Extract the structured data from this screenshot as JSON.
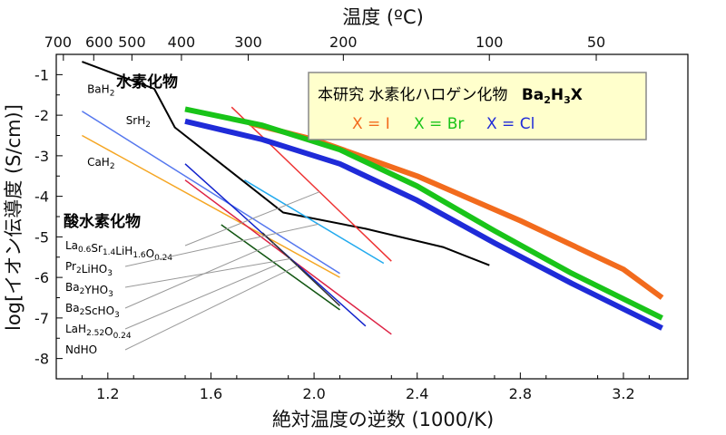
{
  "chart_data": {
    "type": "line",
    "xlabel": "絶対温度の逆数 (1000/K)",
    "ylabel": "log[イオン伝導度 (S/cm)]",
    "top_axis_label": "温度 (ºC)",
    "xlim": [
      1.0,
      3.45
    ],
    "ylim": [
      -8.5,
      -0.5
    ],
    "x_ticks": [
      1.2,
      1.6,
      2.0,
      2.4,
      2.8,
      3.2
    ],
    "x_tick_labels": [
      "1.2",
      "1.6",
      "2.0",
      "2.4",
      "2.8",
      "3.2"
    ],
    "y_ticks": [
      -1,
      -2,
      -3,
      -4,
      -5,
      -6,
      -7,
      -8
    ],
    "y_tick_labels": [
      "-1",
      "-2",
      "-3",
      "-4",
      "-5",
      "-6",
      "-7",
      "-8"
    ],
    "top_ticks": [
      700,
      600,
      500,
      400,
      300,
      200,
      100,
      50
    ],
    "top_tick_labels": [
      "700",
      "600",
      "500",
      "400",
      "300",
      "200",
      "100",
      "50"
    ],
    "grid": false,
    "legend": {
      "title_prefix": "本研究 水素化ハロゲン化物",
      "formula": "Ba₂H₃X",
      "items": [
        {
          "label": "X = I",
          "color": "#f26b1d"
        },
        {
          "label": "X = Br",
          "color": "#19c419"
        },
        {
          "label": "X = Cl",
          "color": "#1f2bd8"
        }
      ],
      "placement": "top-right",
      "background": "#ffffcc"
    },
    "group_labels": {
      "hydrides": "水素化物",
      "oxyhydrides": "酸水素化物"
    },
    "series": [
      {
        "name": "X = I",
        "color": "#f26b1d",
        "width": 6,
        "x": [
          1.75,
          2.0,
          2.4,
          2.8,
          3.2,
          3.35
        ],
        "y": [
          -2.2,
          -2.6,
          -3.5,
          -4.6,
          -5.8,
          -6.5
        ]
      },
      {
        "name": "X = Br",
        "color": "#19c419",
        "width": 6,
        "x": [
          1.5,
          1.8,
          2.1,
          2.4,
          2.7,
          3.0,
          3.35
        ],
        "y": [
          -1.85,
          -2.25,
          -2.85,
          -3.75,
          -4.85,
          -5.9,
          -7.0
        ]
      },
      {
        "name": "X = Cl",
        "color": "#1f2bd8",
        "width": 6,
        "x": [
          1.5,
          1.8,
          2.1,
          2.4,
          2.7,
          3.0,
          3.35
        ],
        "y": [
          -2.15,
          -2.6,
          -3.2,
          -4.1,
          -5.15,
          -6.15,
          -7.25
        ]
      },
      {
        "name": "BaH₂",
        "color": "#000000",
        "width": 2,
        "x": [
          1.1,
          1.38,
          1.46,
          1.68,
          1.88,
          2.2,
          2.5,
          2.68
        ],
        "y": [
          -0.68,
          -1.35,
          -2.3,
          -3.4,
          -4.4,
          -4.8,
          -5.25,
          -5.7
        ]
      },
      {
        "name": "SrH₂",
        "color": "#5577ee",
        "width": 1.5,
        "x": [
          1.1,
          2.1
        ],
        "y": [
          -1.9,
          -5.9
        ]
      },
      {
        "name": "CaH₂",
        "color": "#f5a623",
        "width": 1.5,
        "x": [
          1.1,
          2.1
        ],
        "y": [
          -2.5,
          -6.0
        ]
      },
      {
        "name": "La₀.₆Sr₁.₄LiH₁.₆O₀.₂₄",
        "color": "#ee3333",
        "width": 1.5,
        "x": [
          1.68,
          2.3
        ],
        "y": [
          -1.8,
          -5.6
        ]
      },
      {
        "name": "Pr₂LiHO₃",
        "color": "#22aaee",
        "width": 1.5,
        "x": [
          1.73,
          2.27
        ],
        "y": [
          -3.6,
          -5.65
        ]
      },
      {
        "name": "Ba₂YHO₃",
        "color": "#dd2244",
        "width": 1.5,
        "x": [
          1.5,
          2.3
        ],
        "y": [
          -3.6,
          -7.4
        ]
      },
      {
        "name": "Ba₂ScHO₃",
        "color": "#1122cc",
        "width": 1.5,
        "x": [
          1.5,
          2.2
        ],
        "y": [
          -3.2,
          -7.2
        ]
      },
      {
        "name": "LaH₂.₅₂O₀.₂₄",
        "color": "#115511",
        "width": 1.5,
        "x": [
          1.64,
          2.1
        ],
        "y": [
          -4.7,
          -6.8
        ]
      },
      {
        "name": "NdHO",
        "color": "#333333",
        "width": 1.5,
        "x": [
          1.8,
          2.1
        ],
        "y": [
          -4.9,
          -6.7
        ]
      }
    ],
    "annotations": [
      {
        "text": "BaH₂",
        "x": 1.12,
        "y": -1.45
      },
      {
        "text": "SrH₂",
        "x": 1.27,
        "y": -2.22
      },
      {
        "text": "CaH₂",
        "x": 1.12,
        "y": -3.25
      }
    ],
    "oxyhydride_labels": [
      {
        "text": "La₀.₆Sr₁.₄LiH₁.₆O₀.₂₄",
        "to_series": 6
      },
      {
        "text": "Pr₂LiHO₃",
        "to_series": 7
      },
      {
        "text": "Ba₂YHO₃",
        "to_series": 8
      },
      {
        "text": "Ba₂ScHO₃",
        "to_series": 9
      },
      {
        "text": "LaH₂.₅₂O₀.₂₄",
        "to_series": 10
      },
      {
        "text": "NdHO",
        "to_series": 11
      }
    ]
  }
}
